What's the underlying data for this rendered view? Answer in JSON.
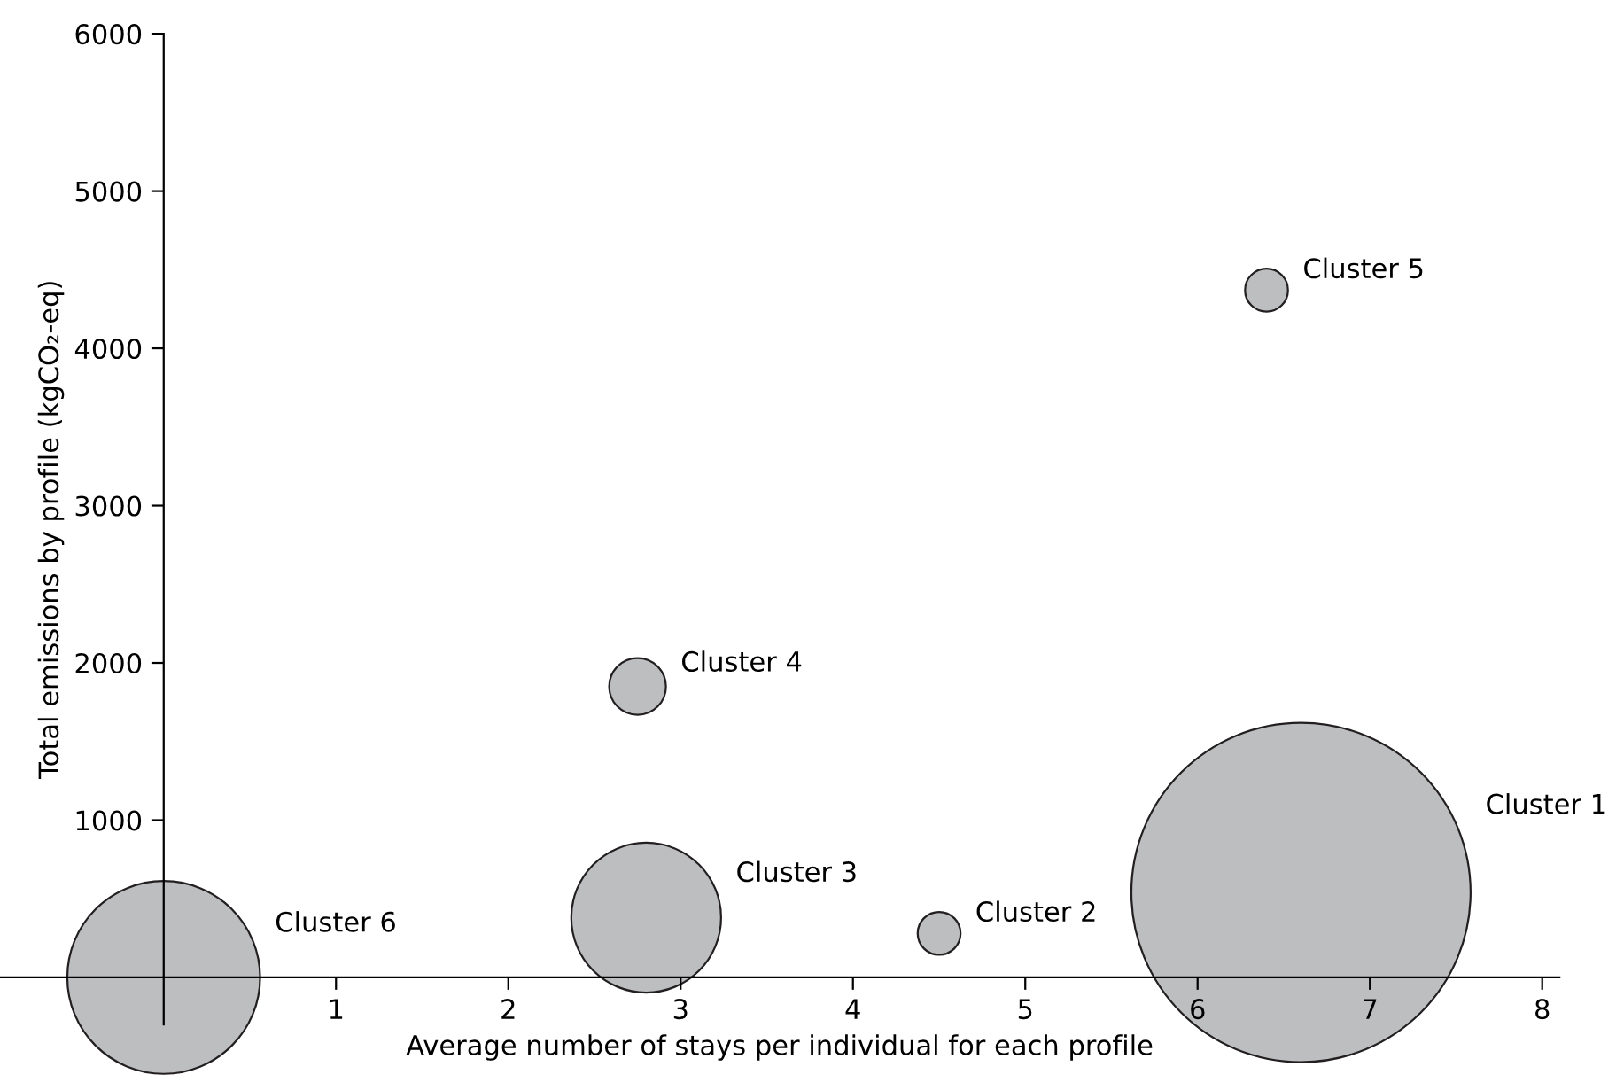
{
  "chart_data": {
    "type": "bubble",
    "xlabel": "Average number of stays per individual for each profile",
    "ylabel": "Total emissions by profile (kgCO₂-eq)",
    "xlim": [
      -0.95,
      8.1
    ],
    "ylim": [
      -300,
      6000
    ],
    "xticks": [
      1,
      2,
      3,
      4,
      5,
      6,
      7,
      8
    ],
    "yticks": [
      1000,
      2000,
      3000,
      4000,
      5000,
      6000
    ],
    "grid": false,
    "legend": false,
    "series": [
      {
        "name": "Cluster 1",
        "color": "#bcbec0",
        "x": [
          6.6
        ],
        "values": [
          540
        ],
        "sizes": [
          1
        ]
      },
      {
        "name": "Cluster 2",
        "color": "#bcbec0",
        "x": [
          4.5
        ],
        "values": [
          280
        ],
        "sizes": [
          0.016
        ]
      },
      {
        "name": "Cluster 3",
        "color": "#bcbec0",
        "x": [
          2.8
        ],
        "values": [
          380
        ],
        "sizes": [
          0.195
        ]
      },
      {
        "name": "Cluster 4",
        "color": "#bcbec0",
        "x": [
          2.75
        ],
        "values": [
          1850
        ],
        "sizes": [
          0.028
        ]
      },
      {
        "name": "Cluster 5",
        "color": "#bcbec0",
        "x": [
          6.4
        ],
        "values": [
          4370
        ],
        "sizes": [
          0.016
        ]
      },
      {
        "name": "Cluster 6",
        "color": "#bcbec0",
        "x": [
          0
        ],
        "values": [
          0
        ],
        "sizes": [
          0.323
        ]
      }
    ]
  }
}
